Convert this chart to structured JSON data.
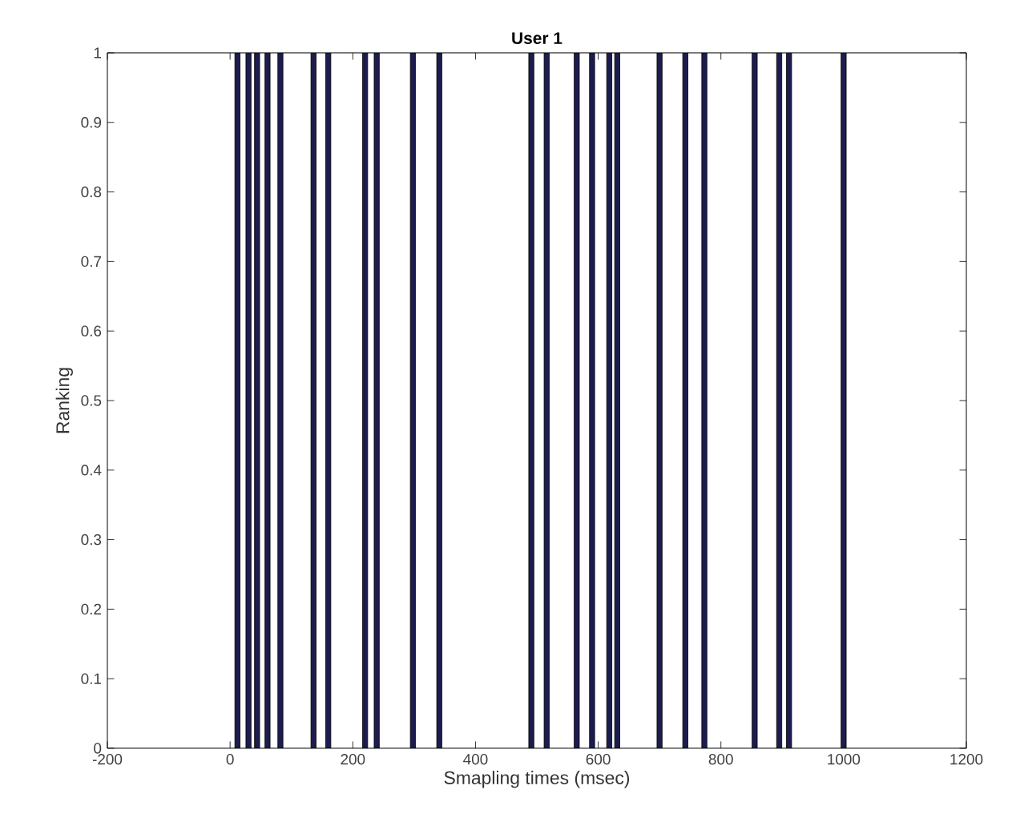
{
  "chart_data": {
    "type": "bar",
    "title": "User 1",
    "xlabel": "Smapling times (msec)",
    "ylabel": "Ranking",
    "x": [
      12,
      30,
      44,
      61,
      82,
      136,
      160,
      220,
      239,
      298,
      341,
      491,
      516,
      565,
      590,
      618,
      631,
      700,
      742,
      773,
      855,
      895,
      911,
      1000
    ],
    "values": [
      1,
      1,
      1,
      1,
      1,
      1,
      1,
      1,
      1,
      1,
      1,
      1,
      1,
      1,
      1,
      1,
      1,
      1,
      1,
      1,
      1,
      1,
      1,
      1
    ],
    "color": "#1c1c4e",
    "xlim": [
      -200,
      1200
    ],
    "xticks": [
      -200,
      0,
      200,
      400,
      600,
      800,
      1000,
      1200
    ],
    "ylim": [
      0,
      1
    ],
    "yticks": [
      0,
      0.1,
      0.2,
      0.3,
      0.4,
      0.5,
      0.6,
      0.7,
      0.8,
      0.9,
      1
    ],
    "grid": false
  }
}
